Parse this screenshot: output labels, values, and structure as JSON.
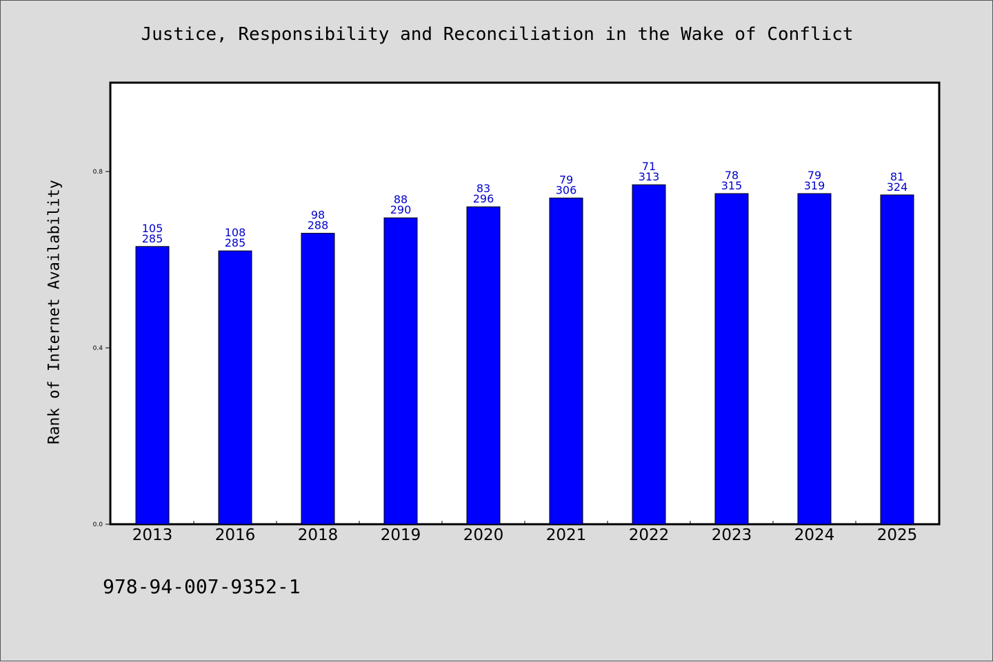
{
  "colors": {
    "bar": "#0000ff",
    "label": "#0000cc",
    "background": "#dcdcdc",
    "plot_background": "#ffffff"
  },
  "footer": {
    "isbn": "978-94-007-9352-1"
  },
  "chart_data": {
    "type": "bar",
    "title": "Justice, Responsibility and Reconciliation in the Wake of Conflict",
    "xlabel": "",
    "ylabel": "Rank of Internet Availability",
    "ylim": [
      0,
      1.0
    ],
    "yticks": [
      0.0,
      0.4,
      0.8
    ],
    "ytick_labels": [
      "0.0",
      "0.4",
      "0.8"
    ],
    "grid": false,
    "legend": "none",
    "categories": [
      "2013",
      "2016",
      "2018",
      "2019",
      "2020",
      "2021",
      "2022",
      "2023",
      "2024",
      "2025"
    ],
    "values": [
      0.63,
      0.62,
      0.66,
      0.695,
      0.72,
      0.74,
      0.77,
      0.75,
      0.75,
      0.747
    ],
    "labels_top": [
      "105",
      "108",
      "98",
      "88",
      "83",
      "79",
      "71",
      "78",
      "79",
      "81"
    ],
    "labels_bottom": [
      "285",
      "285",
      "288",
      "290",
      "296",
      "306",
      "313",
      "315",
      "319",
      "324"
    ]
  }
}
